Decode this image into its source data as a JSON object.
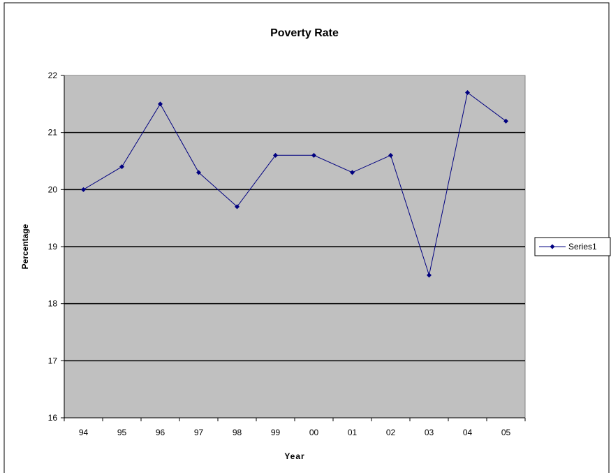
{
  "chart_data": {
    "type": "line",
    "title": "Poverty Rate",
    "xlabel": "Year",
    "ylabel": "Percentage",
    "categories": [
      "94",
      "95",
      "96",
      "97",
      "98",
      "99",
      "00",
      "01",
      "02",
      "03",
      "04",
      "05"
    ],
    "series": [
      {
        "name": "Series1",
        "values": [
          20.0,
          20.4,
          21.5,
          20.3,
          19.7,
          20.6,
          20.6,
          20.3,
          20.6,
          18.5,
          21.7,
          21.2
        ]
      }
    ],
    "ylim": [
      16,
      22
    ],
    "yticks": [
      "16",
      "17",
      "18",
      "19",
      "20",
      "21",
      "22"
    ],
    "grid": true,
    "legend": "right",
    "colors": {
      "plot_background": "#c0c0c0",
      "series_line": "#000080",
      "gridline": "#000000"
    }
  }
}
